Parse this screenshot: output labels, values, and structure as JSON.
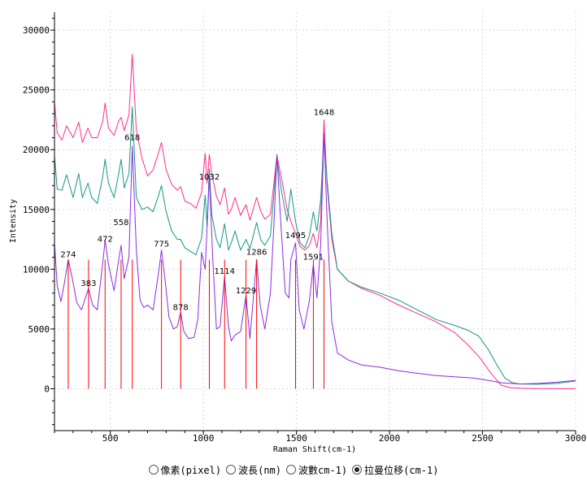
{
  "chart_data": {
    "type": "line",
    "xlabel": "Raman Shift(cm-1)",
    "ylabel": "Intensity",
    "xlim": [
      200,
      3000
    ],
    "ylim": [
      -3500,
      31500
    ],
    "x_ticks": [
      500,
      1000,
      1500,
      2000,
      2500,
      3000
    ],
    "y_ticks": [
      0,
      5000,
      10000,
      15000,
      20000,
      25000,
      30000
    ],
    "grid": true,
    "series": [
      {
        "color": "#ff2d8a",
        "points": [
          [
            200,
            24000
          ],
          [
            215,
            21400
          ],
          [
            240,
            20800
          ],
          [
            265,
            22000
          ],
          [
            300,
            21000
          ],
          [
            330,
            22300
          ],
          [
            350,
            20600
          ],
          [
            380,
            21800
          ],
          [
            400,
            21000
          ],
          [
            430,
            21000
          ],
          [
            460,
            22400
          ],
          [
            472,
            23900
          ],
          [
            490,
            21800
          ],
          [
            520,
            21200
          ],
          [
            545,
            22400
          ],
          [
            558,
            22700
          ],
          [
            575,
            21600
          ],
          [
            600,
            22900
          ],
          [
            618,
            28000
          ],
          [
            640,
            21600
          ],
          [
            670,
            19300
          ],
          [
            700,
            17800
          ],
          [
            730,
            18300
          ],
          [
            760,
            19800
          ],
          [
            775,
            20600
          ],
          [
            800,
            18300
          ],
          [
            830,
            17100
          ],
          [
            860,
            16600
          ],
          [
            878,
            16900
          ],
          [
            900,
            15700
          ],
          [
            930,
            15500
          ],
          [
            960,
            15100
          ],
          [
            990,
            16400
          ],
          [
            1010,
            19700
          ],
          [
            1020,
            17200
          ],
          [
            1032,
            19600
          ],
          [
            1045,
            18000
          ],
          [
            1070,
            16100
          ],
          [
            1090,
            15400
          ],
          [
            1114,
            16800
          ],
          [
            1135,
            14600
          ],
          [
            1150,
            15000
          ],
          [
            1170,
            16000
          ],
          [
            1200,
            14500
          ],
          [
            1229,
            15400
          ],
          [
            1250,
            14100
          ],
          [
            1286,
            16000
          ],
          [
            1310,
            14800
          ],
          [
            1330,
            14200
          ],
          [
            1360,
            14600
          ],
          [
            1395,
            19500
          ],
          [
            1420,
            17600
          ],
          [
            1450,
            15000
          ],
          [
            1470,
            14000
          ],
          [
            1495,
            13000
          ],
          [
            1520,
            11900
          ],
          [
            1545,
            11600
          ],
          [
            1570,
            12000
          ],
          [
            1591,
            13000
          ],
          [
            1610,
            11800
          ],
          [
            1630,
            14000
          ],
          [
            1648,
            22500
          ],
          [
            1665,
            17000
          ],
          [
            1690,
            12500
          ],
          [
            1720,
            10000
          ],
          [
            1780,
            9000
          ],
          [
            1850,
            8400
          ],
          [
            1950,
            7800
          ],
          [
            2050,
            7000
          ],
          [
            2150,
            6300
          ],
          [
            2250,
            5600
          ],
          [
            2350,
            4700
          ],
          [
            2420,
            3700
          ],
          [
            2480,
            2700
          ],
          [
            2550,
            1200
          ],
          [
            2600,
            300
          ],
          [
            2650,
            100
          ],
          [
            2700,
            40
          ],
          [
            2800,
            20
          ],
          [
            2900,
            20
          ],
          [
            3000,
            10
          ]
        ]
      },
      {
        "color": "#159688",
        "points": [
          [
            200,
            19500
          ],
          [
            215,
            16700
          ],
          [
            240,
            16600
          ],
          [
            265,
            17900
          ],
          [
            300,
            16000
          ],
          [
            330,
            18000
          ],
          [
            350,
            16000
          ],
          [
            380,
            17200
          ],
          [
            400,
            16000
          ],
          [
            430,
            15500
          ],
          [
            460,
            17800
          ],
          [
            472,
            19200
          ],
          [
            490,
            17200
          ],
          [
            520,
            16000
          ],
          [
            545,
            18000
          ],
          [
            558,
            19200
          ],
          [
            575,
            16800
          ],
          [
            600,
            18000
          ],
          [
            618,
            23600
          ],
          [
            640,
            16000
          ],
          [
            670,
            15000
          ],
          [
            700,
            15200
          ],
          [
            730,
            14800
          ],
          [
            760,
            16200
          ],
          [
            775,
            17000
          ],
          [
            800,
            14800
          ],
          [
            830,
            13200
          ],
          [
            860,
            12500
          ],
          [
            878,
            12500
          ],
          [
            900,
            11800
          ],
          [
            930,
            11500
          ],
          [
            960,
            11200
          ],
          [
            990,
            12600
          ],
          [
            1010,
            16200
          ],
          [
            1020,
            13600
          ],
          [
            1032,
            18400
          ],
          [
            1045,
            14600
          ],
          [
            1070,
            12500
          ],
          [
            1090,
            11800
          ],
          [
            1114,
            13800
          ],
          [
            1135,
            11600
          ],
          [
            1150,
            12200
          ],
          [
            1170,
            13200
          ],
          [
            1200,
            11600
          ],
          [
            1229,
            12500
          ],
          [
            1250,
            11700
          ],
          [
            1286,
            13900
          ],
          [
            1310,
            12400
          ],
          [
            1330,
            12000
          ],
          [
            1360,
            12800
          ],
          [
            1395,
            19300
          ],
          [
            1420,
            16500
          ],
          [
            1450,
            14000
          ],
          [
            1470,
            16700
          ],
          [
            1495,
            14000
          ],
          [
            1520,
            12200
          ],
          [
            1545,
            11800
          ],
          [
            1570,
            12800
          ],
          [
            1591,
            14800
          ],
          [
            1610,
            13200
          ],
          [
            1630,
            15800
          ],
          [
            1648,
            21000
          ],
          [
            1665,
            17400
          ],
          [
            1690,
            13000
          ],
          [
            1720,
            10000
          ],
          [
            1780,
            9000
          ],
          [
            1850,
            8500
          ],
          [
            1950,
            8000
          ],
          [
            2050,
            7400
          ],
          [
            2150,
            6600
          ],
          [
            2250,
            5800
          ],
          [
            2350,
            5300
          ],
          [
            2420,
            4900
          ],
          [
            2480,
            4400
          ],
          [
            2530,
            3300
          ],
          [
            2580,
            1900
          ],
          [
            2620,
            900
          ],
          [
            2660,
            500
          ],
          [
            2700,
            400
          ],
          [
            2800,
            380
          ],
          [
            2900,
            450
          ],
          [
            3000,
            650
          ]
        ]
      },
      {
        "color": "#8a2be2",
        "points": [
          [
            200,
            12200
          ],
          [
            215,
            8600
          ],
          [
            235,
            7300
          ],
          [
            255,
            9000
          ],
          [
            274,
            10800
          ],
          [
            295,
            9300
          ],
          [
            320,
            7200
          ],
          [
            345,
            6600
          ],
          [
            383,
            8400
          ],
          [
            405,
            7000
          ],
          [
            430,
            6600
          ],
          [
            460,
            10600
          ],
          [
            472,
            12400
          ],
          [
            490,
            10400
          ],
          [
            520,
            8200
          ],
          [
            545,
            10800
          ],
          [
            558,
            12000
          ],
          [
            575,
            9200
          ],
          [
            600,
            11000
          ],
          [
            618,
            20300
          ],
          [
            640,
            11600
          ],
          [
            660,
            7400
          ],
          [
            680,
            6800
          ],
          [
            700,
            7000
          ],
          [
            730,
            6600
          ],
          [
            760,
            9800
          ],
          [
            775,
            11600
          ],
          [
            795,
            9000
          ],
          [
            815,
            6000
          ],
          [
            840,
            5000
          ],
          [
            860,
            5200
          ],
          [
            878,
            6400
          ],
          [
            895,
            4800
          ],
          [
            920,
            4200
          ],
          [
            950,
            4300
          ],
          [
            970,
            5800
          ],
          [
            990,
            11400
          ],
          [
            1010,
            10000
          ],
          [
            1032,
            17800
          ],
          [
            1050,
            11000
          ],
          [
            1070,
            5000
          ],
          [
            1090,
            5200
          ],
          [
            1114,
            9400
          ],
          [
            1135,
            5200
          ],
          [
            1150,
            4000
          ],
          [
            1170,
            4500
          ],
          [
            1200,
            4800
          ],
          [
            1229,
            7800
          ],
          [
            1250,
            4200
          ],
          [
            1286,
            10800
          ],
          [
            1305,
            7000
          ],
          [
            1330,
            5000
          ],
          [
            1360,
            8000
          ],
          [
            1380,
            14000
          ],
          [
            1395,
            19600
          ],
          [
            1415,
            14200
          ],
          [
            1440,
            8000
          ],
          [
            1460,
            7600
          ],
          [
            1470,
            10800
          ],
          [
            1495,
            12200
          ],
          [
            1515,
            6600
          ],
          [
            1540,
            5000
          ],
          [
            1570,
            7400
          ],
          [
            1591,
            10400
          ],
          [
            1610,
            7600
          ],
          [
            1630,
            12000
          ],
          [
            1648,
            21400
          ],
          [
            1665,
            14000
          ],
          [
            1690,
            5600
          ],
          [
            1720,
            3000
          ],
          [
            1780,
            2400
          ],
          [
            1850,
            2000
          ],
          [
            1950,
            1800
          ],
          [
            2050,
            1500
          ],
          [
            2150,
            1300
          ],
          [
            2250,
            1100
          ],
          [
            2350,
            1000
          ],
          [
            2450,
            900
          ],
          [
            2550,
            650
          ],
          [
            2600,
            500
          ],
          [
            2700,
            400
          ],
          [
            2800,
            450
          ],
          [
            2900,
            550
          ],
          [
            3000,
            700
          ]
        ]
      }
    ],
    "peak_markers": [
      274,
      383,
      472,
      558,
      618,
      775,
      878,
      1032,
      1114,
      1229,
      1286,
      1495,
      1591,
      1648
    ],
    "peak_labels": [
      {
        "x": 274,
        "y": 11000,
        "text": "274"
      },
      {
        "x": 383,
        "y": 8600,
        "text": "383"
      },
      {
        "x": 472,
        "y": 12300,
        "text": "472"
      },
      {
        "x": 558,
        "y": 13700,
        "text": "558"
      },
      {
        "x": 618,
        "y": 20800,
        "text": "618"
      },
      {
        "x": 775,
        "y": 11900,
        "text": "775"
      },
      {
        "x": 878,
        "y": 6600,
        "text": "878"
      },
      {
        "x": 1032,
        "y": 17500,
        "text": "1032"
      },
      {
        "x": 1114,
        "y": 9600,
        "text": "1114"
      },
      {
        "x": 1229,
        "y": 8000,
        "text": "1229"
      },
      {
        "x": 1286,
        "y": 11200,
        "text": "1286"
      },
      {
        "x": 1495,
        "y": 12600,
        "text": "1495"
      },
      {
        "x": 1591,
        "y": 10800,
        "text": "1591"
      },
      {
        "x": 1648,
        "y": 22900,
        "text": "1648"
      }
    ],
    "marker_color": "#ff0000"
  },
  "radio_options": [
    {
      "label": "像素(pixel)",
      "checked": false
    },
    {
      "label": "波長(nm)",
      "checked": false
    },
    {
      "label": "波數cm-1)",
      "checked": false
    },
    {
      "label": "拉曼位移(cm-1)",
      "checked": true
    }
  ]
}
